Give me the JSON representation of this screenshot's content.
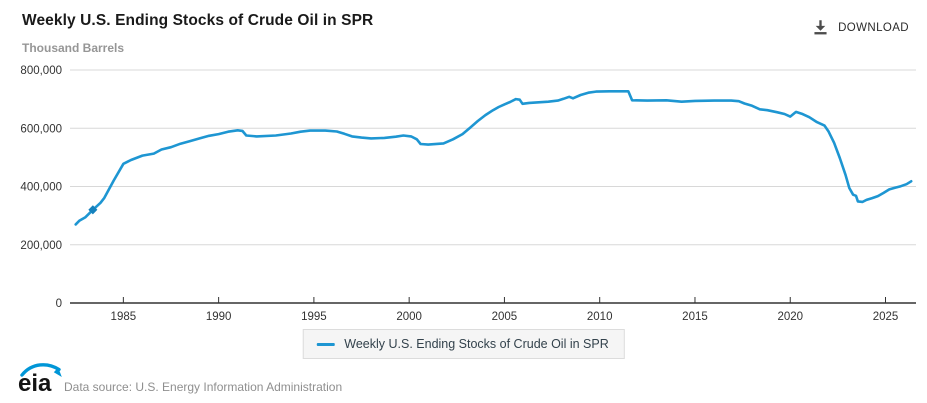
{
  "header": {
    "title": "Weekly U.S. Ending Stocks of Crude Oil in SPR",
    "units_label": "Thousand Barrels",
    "download_label": "DOWNLOAD"
  },
  "footer": {
    "logo_text": "eia",
    "data_source": "Data source: U.S. Energy Information Administration"
  },
  "colors": {
    "line": "#1e96d2",
    "marker": "#1581bd",
    "grid": "#d8d8d8",
    "axis": "#333333",
    "axis_text": "#333333",
    "logo_swoosh": "#0096d7"
  },
  "chart_data": {
    "type": "line",
    "title": "Weekly U.S. Ending Stocks of Crude Oil in SPR",
    "xlabel": "",
    "ylabel": "Thousand Barrels",
    "xlim": [
      1982.2,
      2026.6
    ],
    "ylim": [
      0,
      800000
    ],
    "grid": true,
    "legend_position": "bottom",
    "yticks": [
      0,
      200000,
      400000,
      600000,
      800000
    ],
    "ytick_labels": [
      "0",
      "200,000",
      "400,000",
      "600,000",
      "800,000"
    ],
    "xticks": [
      1985,
      1990,
      1995,
      2000,
      2005,
      2010,
      2015,
      2020,
      2025
    ],
    "marker_point": {
      "x": 1983.4,
      "value": 320000
    },
    "series": [
      {
        "name": "Weekly U.S. Ending Stocks of Crude Oil in SPR",
        "color": "#1e96d2",
        "x": [
          1982.5,
          1982.7,
          1983.0,
          1983.4,
          1983.8,
          1984.0,
          1984.5,
          1985.0,
          1985.4,
          1986.0,
          1986.6,
          1987.0,
          1987.5,
          1988.0,
          1988.5,
          1989.0,
          1989.5,
          1990.0,
          1990.5,
          1991.0,
          1991.25,
          1991.45,
          1992.0,
          1993.0,
          1993.8,
          1994.3,
          1994.8,
          1995.6,
          1996.2,
          1996.6,
          1997.0,
          1997.5,
          1998.0,
          1998.7,
          1999.3,
          1999.7,
          2000.1,
          2000.4,
          2000.6,
          2001.0,
          2001.8,
          2002.3,
          2002.8,
          2003.2,
          2003.6,
          2004.0,
          2004.4,
          2004.7,
          2005.0,
          2005.3,
          2005.6,
          2005.8,
          2005.95,
          2006.3,
          2006.8,
          2007.3,
          2007.8,
          2008.1,
          2008.4,
          2008.6,
          2009.0,
          2009.4,
          2009.8,
          2010.5,
          2011.5,
          2011.7,
          2012.5,
          2013.5,
          2014.3,
          2015.0,
          2016.0,
          2016.9,
          2017.3,
          2017.6,
          2018.0,
          2018.4,
          2018.8,
          2019.3,
          2019.7,
          2020.0,
          2020.3,
          2020.6,
          2021.0,
          2021.4,
          2021.8,
          2022.0,
          2022.3,
          2022.6,
          2022.9,
          2023.1,
          2023.3,
          2023.45,
          2023.55,
          2023.8,
          2024.0,
          2024.3,
          2024.6,
          2024.9,
          2025.2,
          2025.5,
          2025.8,
          2026.1,
          2026.35
        ],
        "values": [
          270000,
          283000,
          294000,
          320000,
          344000,
          361000,
          421000,
          478000,
          491000,
          506000,
          513000,
          527000,
          535000,
          547000,
          556000,
          565000,
          574000,
          580000,
          588000,
          593000,
          591000,
          575000,
          572000,
          575000,
          582000,
          588000,
          592000,
          592000,
          589000,
          581000,
          572000,
          568000,
          565000,
          567000,
          571000,
          575000,
          572000,
          562000,
          546000,
          544000,
          548000,
          562000,
          580000,
          602000,
          625000,
          645000,
          662000,
          673000,
          682000,
          690000,
          700000,
          698000,
          684000,
          687000,
          689000,
          691000,
          695000,
          701000,
          708000,
          703000,
          714000,
          722000,
          726000,
          727000,
          727000,
          696000,
          695000,
          696000,
          691000,
          694000,
          695000,
          695000,
          693000,
          685000,
          677000,
          665000,
          662000,
          655000,
          649000,
          640000,
          656000,
          650000,
          638000,
          621000,
          609000,
          590000,
          550000,
          498000,
          440000,
          395000,
          372000,
          368000,
          349000,
          347000,
          354000,
          360000,
          367000,
          378000,
          390000,
          396000,
          401000,
          408000,
          418000
        ]
      }
    ]
  }
}
